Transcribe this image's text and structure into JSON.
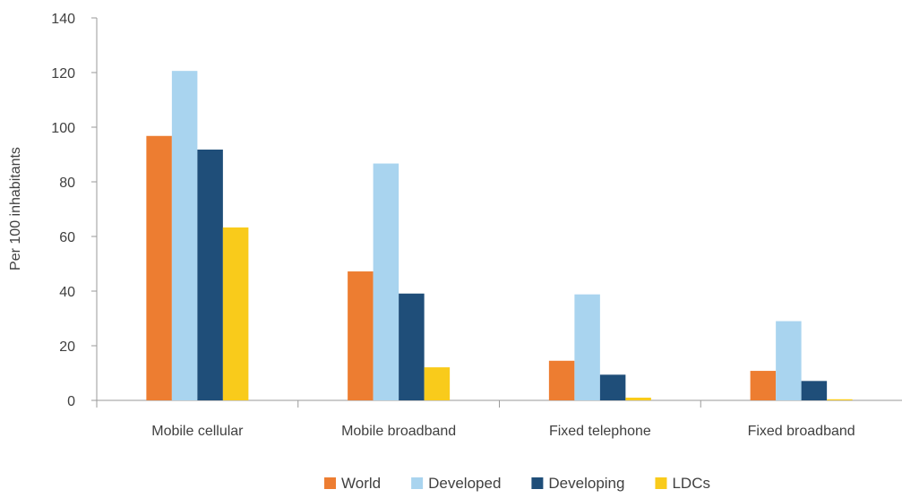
{
  "chart_data": {
    "type": "bar",
    "title": "",
    "xlabel": "",
    "ylabel": "Per 100 inhabitants",
    "ylim": [
      0,
      140
    ],
    "yticks": [
      0,
      20,
      40,
      60,
      80,
      100,
      120,
      140
    ],
    "grid": false,
    "legend_position": "bottom",
    "categories": [
      "Mobile cellular",
      "Mobile broadband",
      "Fixed telephone",
      "Fixed broadband"
    ],
    "series": [
      {
        "name": "World",
        "color": "#ED7D31",
        "values": [
          96.8,
          47.2,
          14.5,
          10.8
        ]
      },
      {
        "name": "Developed",
        "color": "#A9D4EF",
        "values": [
          120.6,
          86.7,
          38.8,
          29.0
        ]
      },
      {
        "name": "Developing",
        "color": "#1F4E79",
        "values": [
          91.8,
          39.1,
          9.4,
          7.1
        ]
      },
      {
        "name": "LDCs",
        "color": "#F9CB1B",
        "values": [
          63.3,
          12.1,
          1.0,
          0.4
        ]
      }
    ]
  }
}
